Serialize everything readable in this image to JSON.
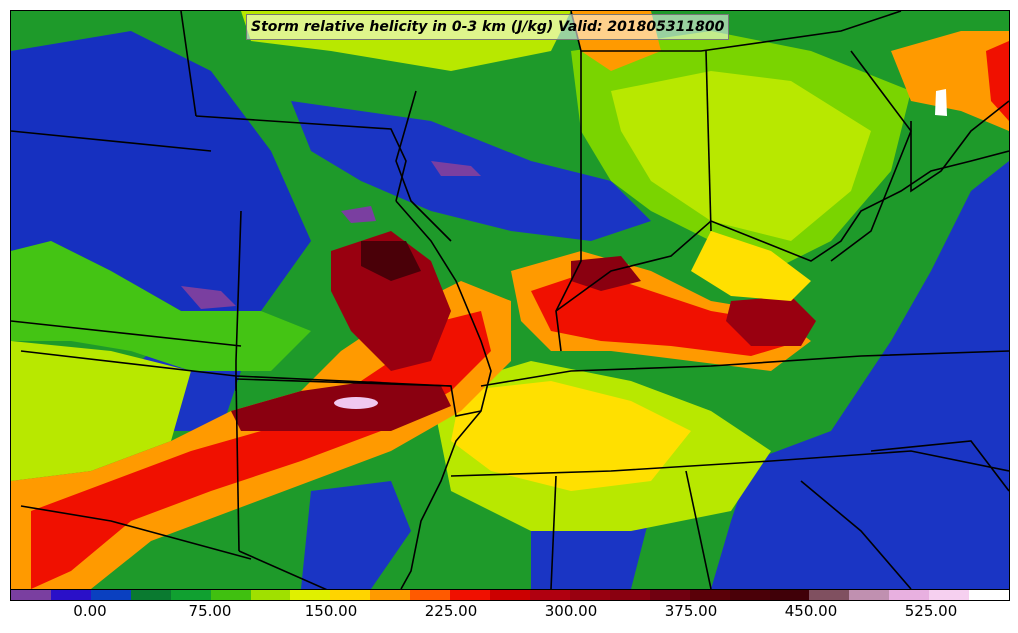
{
  "title": "Storm relative helicity in 0-3 km (J/kg) Valid: 201805311800",
  "colorbar": {
    "colors": [
      "#7a3fa0",
      "#2a10c8",
      "#0a40c0",
      "#0a7a30",
      "#10a030",
      "#40c010",
      "#a0e000",
      "#e0f000",
      "#ffd400",
      "#ff9a00",
      "#ff5a00",
      "#f01000",
      "#cc0000",
      "#b00010",
      "#990010",
      "#8a0010",
      "#700010",
      "#5a0008",
      "#4a0008",
      "#400008",
      "#805060",
      "#c090b0",
      "#e8b0e0",
      "#f6d0f0",
      "#ffffff"
    ],
    "tick_labels": [
      "0.00",
      "75.00",
      "150.00",
      "225.00",
      "300.00",
      "375.00",
      "450.00",
      "525.00"
    ]
  }
}
